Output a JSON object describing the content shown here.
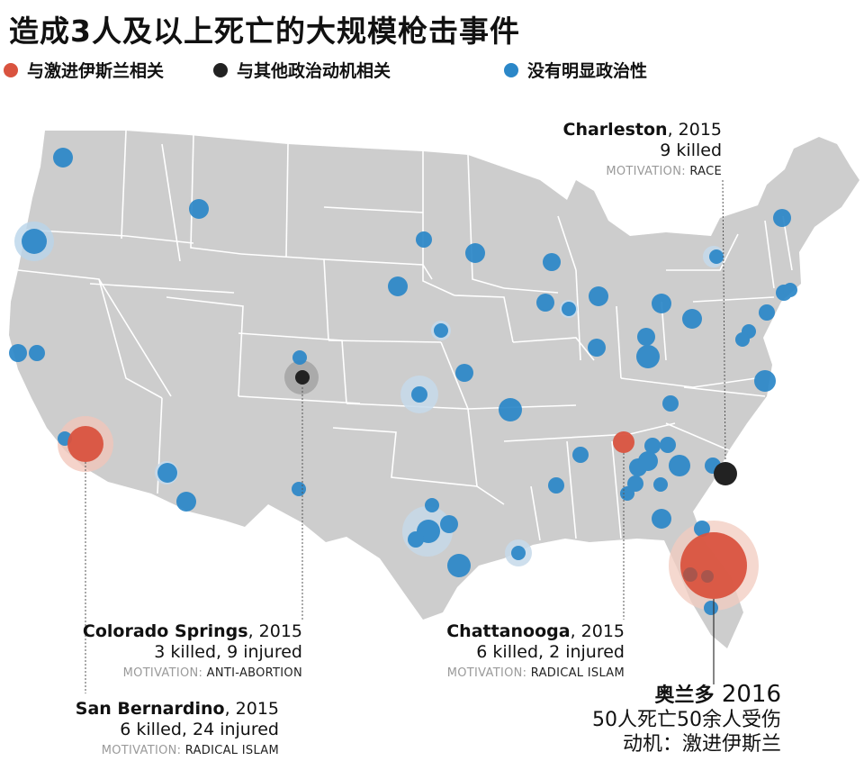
{
  "title": "造成3人及以上死亡的大规模枪击事件",
  "legend": [
    {
      "label": "与激进伊斯兰相关",
      "color": "#d9533f"
    },
    {
      "label": "与其他政治动机相关",
      "color": "#222222"
    },
    {
      "label": "没有明显政治性",
      "color": "#2b87c8"
    }
  ],
  "colors": {
    "land": "#cdcdcd",
    "border": "#ffffff",
    "islam": "#d9533f",
    "political": "#222222",
    "none": "#2b87c8"
  },
  "callouts": {
    "charleston": {
      "city": "Charleston",
      "year": ", 2015",
      "line": "9 killed",
      "mot_label": "MOTIVATION: ",
      "mot_value": "RACE"
    },
    "colorado": {
      "city": "Colorado Springs",
      "year": ", 2015",
      "line": "3 killed, 9 injured",
      "mot_label": "MOTIVATION: ",
      "mot_value": "ANTI-ABORTION"
    },
    "chattanooga": {
      "city": "Chattanooga",
      "year": ", 2015",
      "line": "6 killed, 2 injured",
      "mot_label": "MOTIVATION: ",
      "mot_value": "RADICAL ISLAM"
    },
    "sanbernardino": {
      "city": "San Bernardino",
      "year": ", 2015",
      "line": "6 killed, 24 injured",
      "mot_label": "MOTIVATION: ",
      "mot_value": "RADICAL ISLAM"
    },
    "orlando": {
      "city": "奥兰多",
      "year": " 2016",
      "line": "50人死亡50余人受伤",
      "mot": "动机：激进伊斯兰"
    }
  }
}
